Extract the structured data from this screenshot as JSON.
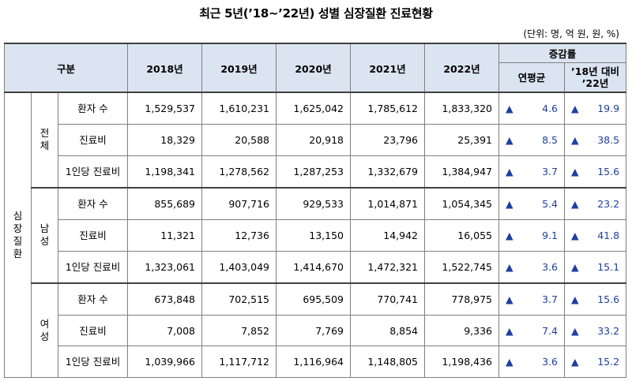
{
  "title": "최근 5년(’18~’22년) 성별 심장질환 진료현황",
  "unit": "(단위: 명, 억 원, 원, %)",
  "header": {
    "category": "구분",
    "years": [
      "2018년",
      "2019년",
      "2020년",
      "2021년",
      "2022년"
    ],
    "change_group": "증감률",
    "change_cols": [
      "연평균",
      "’18년 대비 ’22년"
    ]
  },
  "disease": "심장질환",
  "up_icon": "▲",
  "groups": [
    {
      "name": "전체",
      "rows": [
        {
          "label": "환자 수",
          "values": [
            "1,529,537",
            "1,610,231",
            "1,625,042",
            "1,785,612",
            "1,833,320"
          ],
          "avg": "4.6",
          "total": "19.9"
        },
        {
          "label": "진료비",
          "values": [
            "18,329",
            "20,588",
            "20,918",
            "23,796",
            "25,391"
          ],
          "avg": "8.5",
          "total": "38.5"
        },
        {
          "label": "1인당 진료비",
          "values": [
            "1,198,341",
            "1,278,562",
            "1,287,253",
            "1,332,679",
            "1,384,947"
          ],
          "avg": "3.7",
          "total": "15.6"
        }
      ]
    },
    {
      "name": "남성",
      "rows": [
        {
          "label": "환자 수",
          "values": [
            "855,689",
            "907,716",
            "929,533",
            "1,014,871",
            "1,054,345"
          ],
          "avg": "5.4",
          "total": "23.2"
        },
        {
          "label": "진료비",
          "values": [
            "11,321",
            "12,736",
            "13,150",
            "14,942",
            "16,055"
          ],
          "avg": "9.1",
          "total": "41.8"
        },
        {
          "label": "1인당 진료비",
          "values": [
            "1,323,061",
            "1,403,049",
            "1,414,670",
            "1,472,321",
            "1,522,745"
          ],
          "avg": "3.6",
          "total": "15.1"
        }
      ]
    },
    {
      "name": "여성",
      "rows": [
        {
          "label": "환자 수",
          "values": [
            "673,848",
            "702,515",
            "695,509",
            "770,741",
            "778,975"
          ],
          "avg": "3.7",
          "total": "15.6"
        },
        {
          "label": "진료비",
          "values": [
            "7,008",
            "7,852",
            "7,769",
            "8,854",
            "9,336"
          ],
          "avg": "7.4",
          "total": "33.2"
        },
        {
          "label": "1인당 진료비",
          "values": [
            "1,039,966",
            "1,117,712",
            "1,116,964",
            "1,148,805",
            "1,198,436"
          ],
          "avg": "3.6",
          "total": "15.2"
        }
      ]
    }
  ]
}
